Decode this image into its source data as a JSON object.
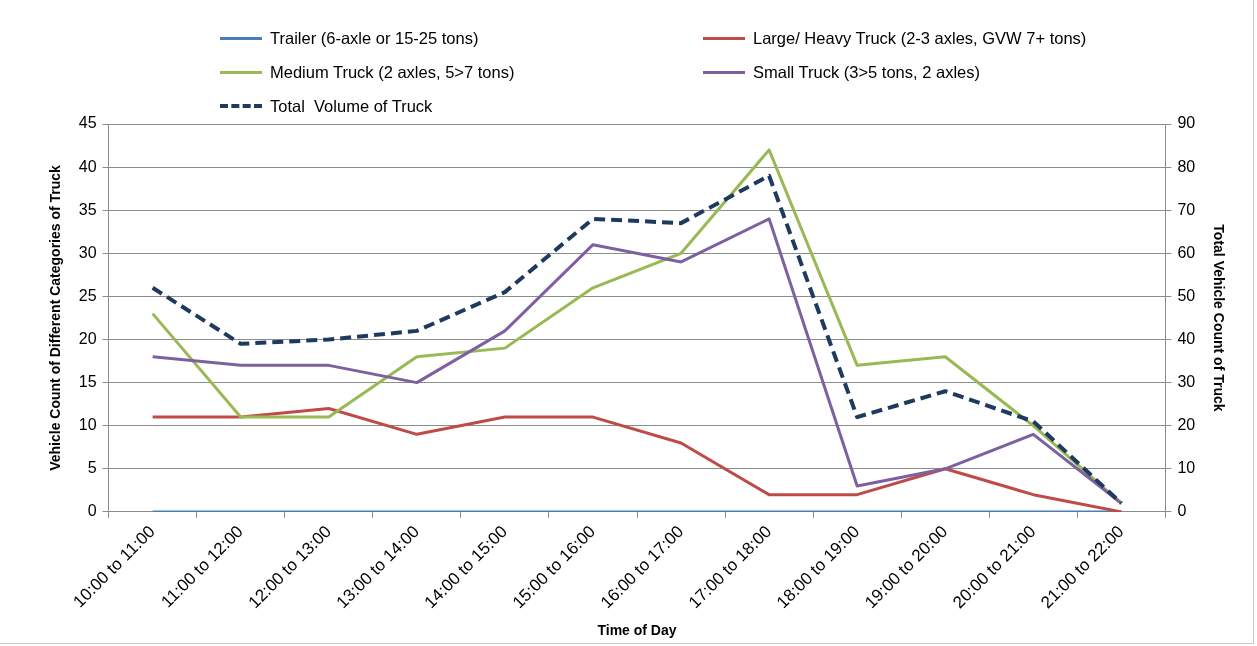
{
  "chart_data": {
    "type": "line",
    "categories": [
      "10:00 to 11:00",
      "11:00 to 12:00",
      "12:00 to 13:00",
      "13:00 to 14:00",
      "14:00 to 15:00",
      "15:00 to 16:00",
      "16:00 to 17:00",
      "17:00 to 18:00",
      "18:00 to 19:00",
      "19:00 to 20:00",
      "20:00 to 21:00",
      "21:00 to 22:00"
    ],
    "xlabel": "Time of Day",
    "ylabel": "Vehicle Count of Different Categories of Truck",
    "y2label": "Total Vehicle Count of Truck",
    "ylim": [
      0,
      45
    ],
    "yticks": [
      0,
      5,
      10,
      15,
      20,
      25,
      30,
      35,
      40,
      45
    ],
    "y2lim": [
      0,
      90
    ],
    "y2ticks": [
      0,
      10,
      20,
      30,
      40,
      50,
      60,
      70,
      80,
      90
    ],
    "grid": "y",
    "legend": "top",
    "marker": "none",
    "series": [
      {
        "name": "Trailer (6-axle or 15-25 tons)",
        "color": "#4a7ebb",
        "line_style": "solid",
        "values": [
          0,
          0,
          0,
          0,
          0,
          0,
          0,
          0,
          0,
          0,
          0,
          0
        ]
      },
      {
        "name": "Large/ Heavy Truck (2-3 axles, GVW 7+ tons)",
        "color": "#be4b48",
        "line_style": "solid",
        "values": [
          11,
          11,
          12,
          9,
          11,
          11,
          8,
          2,
          2,
          5,
          2,
          0
        ]
      },
      {
        "name": "Medium Truck (2 axles, 5>7 tons)",
        "color": "#98b954",
        "line_style": "solid",
        "values": [
          23,
          11,
          11,
          18,
          19,
          26,
          30,
          42,
          17,
          18,
          10,
          1
        ]
      },
      {
        "name": "Small Truck (3>5 tons, 2 axles)",
        "color": "#7d60a0",
        "line_style": "solid",
        "values": [
          18,
          17,
          17,
          15,
          21,
          31,
          29,
          34,
          3,
          5,
          9,
          1
        ]
      },
      {
        "name": "Total  Volume of Truck",
        "color": "#1f3a5f",
        "line_style": "dashed",
        "axis": "y2",
        "values": [
          52,
          39,
          40,
          42,
          51,
          68,
          67,
          78,
          22,
          28,
          21,
          2
        ]
      }
    ]
  }
}
